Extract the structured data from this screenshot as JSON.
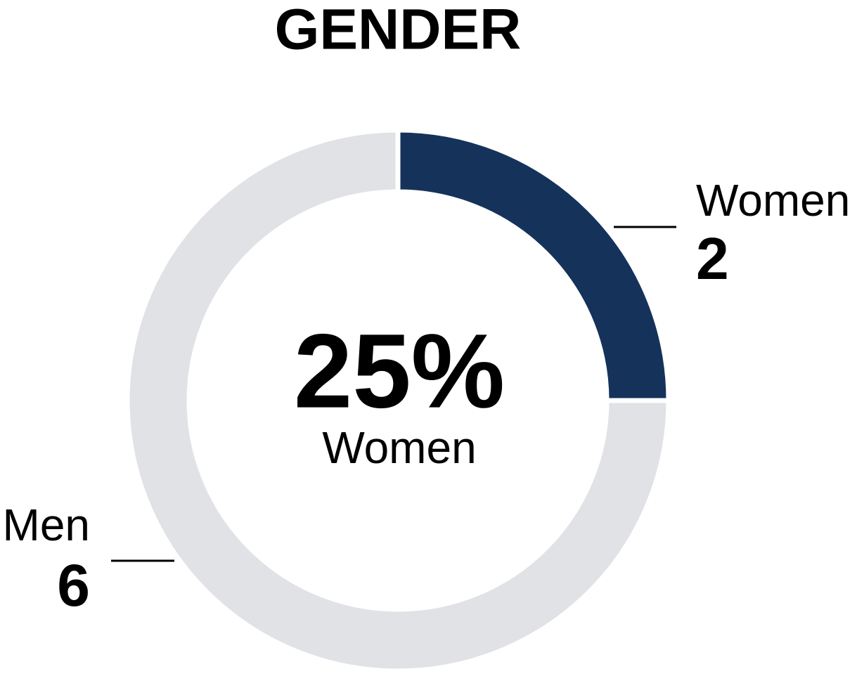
{
  "chart_data": {
    "type": "donut",
    "title": "GENDER",
    "categories": [
      "Women",
      "Men"
    ],
    "values": [
      2,
      6
    ],
    "colors": [
      "#15325a",
      "#e1e2e6"
    ],
    "center_text": "25%",
    "center_subtext": "Women"
  }
}
